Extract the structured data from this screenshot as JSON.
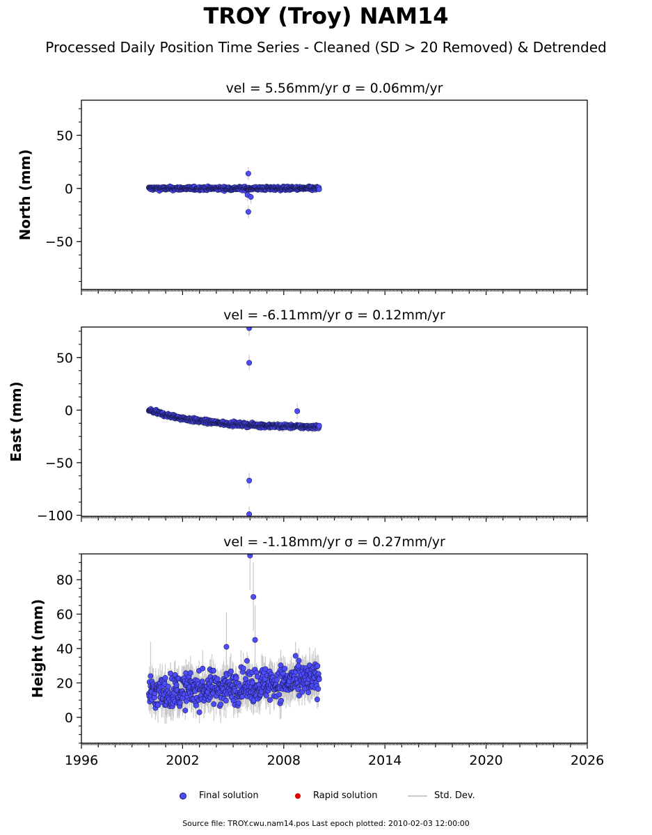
{
  "chart_data": {
    "type": "scatter",
    "title": "TROY (Troy) NAM14",
    "subtitle": "Processed Daily Position Time Series - Cleaned (SD > 20 Removed) & Detrended",
    "xlim": [
      1996,
      2026
    ],
    "x_ticks": [
      "1996",
      "2002",
      "2008",
      "2014",
      "2020",
      "2026"
    ],
    "panels": [
      {
        "name": "north",
        "title": "vel = 5.56mm/yr   σ = 0.06mm/yr",
        "ylabel": "North (mm)",
        "ylim": [
          -95,
          83
        ],
        "y_ticks": [
          50,
          0,
          -50
        ],
        "y_tick_labels": [
          "50",
          "0",
          "−50"
        ],
        "data_start": 2000.0,
        "data_end": 2010.1,
        "trend": [
          0,
          0
        ],
        "scatter": 1.2,
        "err": 2.5,
        "outliers": [
          [
            2005.9,
            14
          ],
          [
            2005.9,
            -22
          ],
          [
            2005.85,
            -6
          ],
          [
            2006.05,
            -8
          ]
        ]
      },
      {
        "name": "east",
        "title": "vel = -6.11mm/yr   σ = 0.12mm/yr",
        "ylabel": "East (mm)",
        "ylim": [
          -101,
          79
        ],
        "y_ticks": [
          50,
          0,
          -50,
          -100
        ],
        "y_tick_labels": [
          "50",
          "0",
          "−50",
          "−100"
        ],
        "data_start": 2000.0,
        "data_end": 2010.1,
        "trend": [
          0,
          -16
        ],
        "scatter": 1.3,
        "err": 3,
        "outliers": [
          [
            2005.95,
            78
          ],
          [
            2005.95,
            45
          ],
          [
            2005.95,
            -67
          ],
          [
            2005.95,
            -99
          ],
          [
            2008.8,
            -1
          ]
        ]
      },
      {
        "name": "height",
        "title": "vel = -1.18mm/yr   σ = 0.27mm/yr",
        "ylabel": "Height (mm)",
        "ylim": [
          -15,
          95
        ],
        "y_ticks": [
          80,
          60,
          40,
          20,
          0
        ],
        "y_tick_labels": [
          "80",
          "60",
          "40",
          "20",
          "0"
        ],
        "data_start": 2000.0,
        "data_end": 2010.1,
        "trend": [
          14,
          22
        ],
        "scatter": 7,
        "err": 8,
        "outliers": [
          [
            2006.0,
            94
          ],
          [
            2006.2,
            70
          ],
          [
            2006.3,
            45
          ],
          [
            2004.6,
            41
          ],
          [
            2000.1,
            24
          ]
        ]
      }
    ],
    "legend": {
      "final": "Final solution",
      "rapid": "Rapid solution",
      "std": "Std. Dev.",
      "placement": "bottom-center"
    },
    "colors": {
      "final": "#4d4dff",
      "final_edge": "#1a1a55",
      "rapid": "#dd0000",
      "std": "#c8c8c8"
    }
  },
  "source": "Source file: TROY.cwu.nam14.pos  Last epoch plotted: 2010-02-03 12:00:00"
}
